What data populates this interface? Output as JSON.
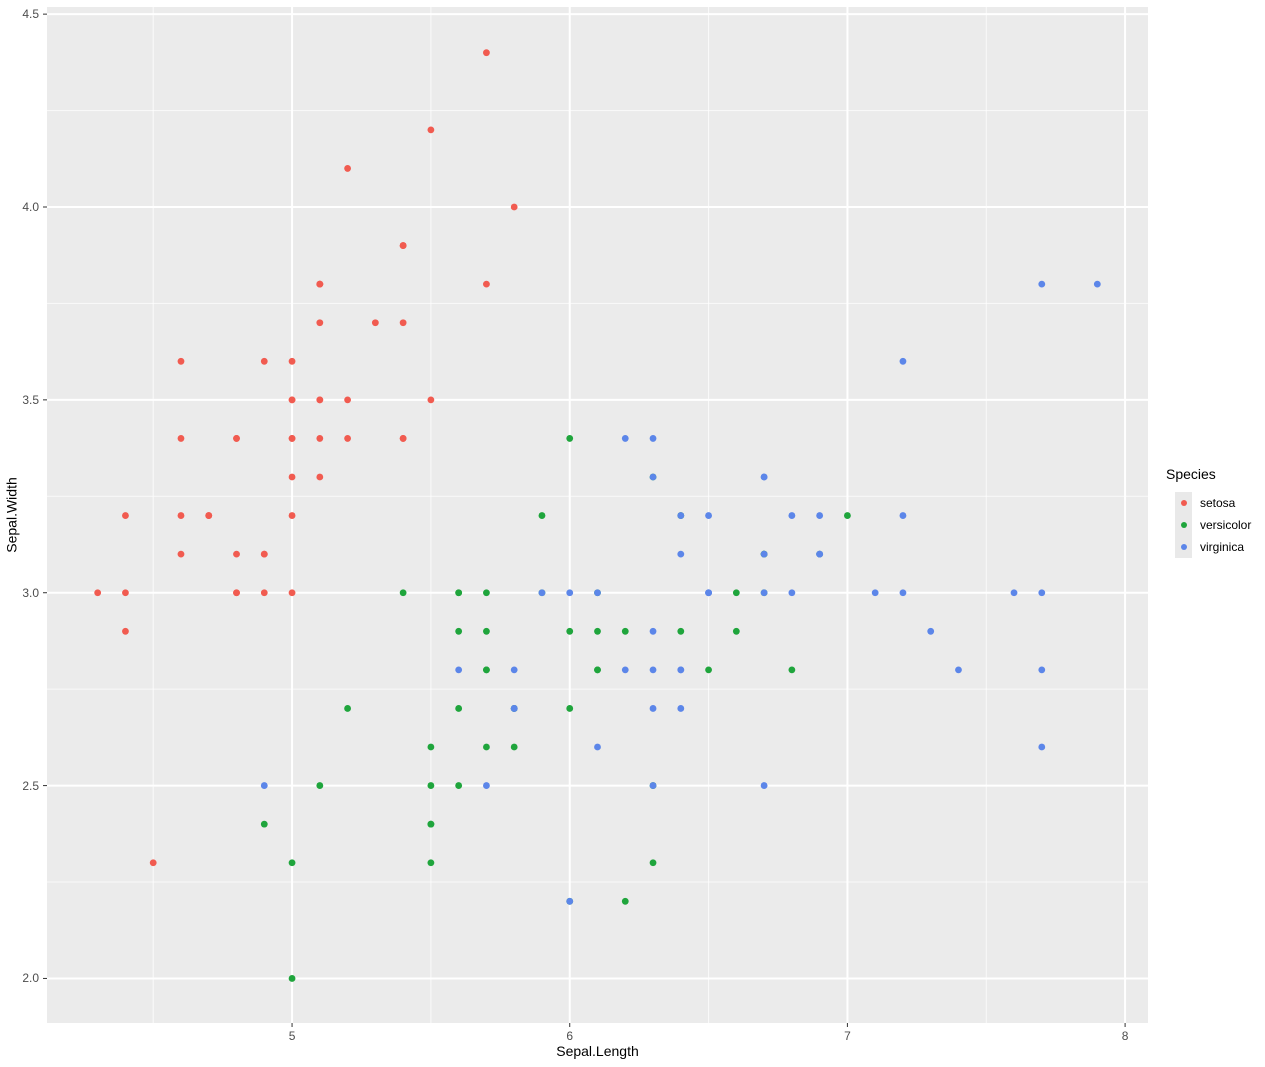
{
  "figure": {
    "background": "#ffffff",
    "panel_background": "#ebebeb",
    "grid_color": "#ffffff",
    "tick_mark_color": "#333333",
    "tick_label_color": "#4d4d4d"
  },
  "legend": {
    "title": "Species",
    "items": [
      {
        "label": "setosa"
      },
      {
        "label": "versicolor"
      },
      {
        "label": "virginica"
      }
    ]
  },
  "chart_data": {
    "type": "scatter",
    "title": "",
    "xlabel": "Sepal.Length",
    "ylabel": "Sepal.Width",
    "xlim": [
      4.1175,
      8.0825
    ],
    "ylim": [
      1.8845,
      4.5185
    ],
    "grid": true,
    "legend_position": "right",
    "x_major_ticks": [
      5,
      6,
      7,
      8
    ],
    "x_tick_labels": [
      "5",
      "6",
      "7",
      "8"
    ],
    "x_minor_ticks": [
      4.5,
      5.5,
      6.5,
      7.5
    ],
    "y_major_ticks": [
      2.0,
      2.5,
      3.0,
      3.5,
      4.0,
      4.5
    ],
    "y_tick_labels": [
      "2.0",
      "2.5",
      "3.0",
      "3.5",
      "4.0",
      "4.5"
    ],
    "y_minor_ticks": [
      2.25,
      2.75,
      3.25,
      3.75,
      4.25
    ],
    "series": [
      {
        "name": "setosa",
        "color": "#f15b50",
        "points": [
          [
            5.1,
            3.5
          ],
          [
            4.9,
            3.0
          ],
          [
            4.7,
            3.2
          ],
          [
            4.6,
            3.1
          ],
          [
            5.0,
            3.6
          ],
          [
            5.4,
            3.9
          ],
          [
            4.6,
            3.4
          ],
          [
            5.0,
            3.4
          ],
          [
            4.4,
            2.9
          ],
          [
            4.9,
            3.1
          ],
          [
            5.4,
            3.7
          ],
          [
            4.8,
            3.4
          ],
          [
            4.8,
            3.0
          ],
          [
            4.3,
            3.0
          ],
          [
            5.8,
            4.0
          ],
          [
            5.7,
            4.4
          ],
          [
            5.4,
            3.9
          ],
          [
            5.1,
            3.5
          ],
          [
            5.7,
            3.8
          ],
          [
            5.1,
            3.8
          ],
          [
            5.4,
            3.4
          ],
          [
            5.1,
            3.7
          ],
          [
            4.6,
            3.6
          ],
          [
            5.1,
            3.3
          ],
          [
            4.8,
            3.4
          ],
          [
            5.0,
            3.0
          ],
          [
            5.0,
            3.4
          ],
          [
            5.2,
            3.5
          ],
          [
            5.2,
            3.4
          ],
          [
            4.7,
            3.2
          ],
          [
            4.8,
            3.1
          ],
          [
            5.4,
            3.4
          ],
          [
            5.2,
            4.1
          ],
          [
            5.5,
            4.2
          ],
          [
            4.9,
            3.1
          ],
          [
            5.0,
            3.2
          ],
          [
            5.5,
            3.5
          ],
          [
            4.9,
            3.6
          ],
          [
            4.4,
            3.0
          ],
          [
            5.1,
            3.4
          ],
          [
            5.0,
            3.5
          ],
          [
            4.5,
            2.3
          ],
          [
            4.4,
            3.2
          ],
          [
            5.0,
            3.5
          ],
          [
            5.1,
            3.8
          ],
          [
            4.8,
            3.0
          ],
          [
            5.1,
            3.8
          ],
          [
            4.6,
            3.2
          ],
          [
            5.3,
            3.7
          ],
          [
            5.0,
            3.3
          ]
        ]
      },
      {
        "name": "versicolor",
        "color": "#1fa53c",
        "points": [
          [
            7.0,
            3.2
          ],
          [
            6.4,
            3.2
          ],
          [
            6.9,
            3.1
          ],
          [
            5.5,
            2.3
          ],
          [
            6.5,
            2.8
          ],
          [
            5.7,
            2.8
          ],
          [
            6.3,
            3.3
          ],
          [
            4.9,
            2.4
          ],
          [
            6.6,
            2.9
          ],
          [
            5.2,
            2.7
          ],
          [
            5.0,
            2.0
          ],
          [
            5.9,
            3.0
          ],
          [
            6.0,
            2.2
          ],
          [
            6.1,
            2.9
          ],
          [
            5.6,
            2.9
          ],
          [
            6.7,
            3.1
          ],
          [
            5.6,
            3.0
          ],
          [
            5.8,
            2.7
          ],
          [
            6.2,
            2.2
          ],
          [
            5.6,
            2.5
          ],
          [
            5.9,
            3.2
          ],
          [
            6.1,
            2.8
          ],
          [
            6.3,
            2.5
          ],
          [
            6.1,
            2.8
          ],
          [
            6.4,
            2.9
          ],
          [
            6.6,
            3.0
          ],
          [
            6.8,
            2.8
          ],
          [
            6.7,
            3.0
          ],
          [
            6.0,
            2.9
          ],
          [
            5.7,
            2.6
          ],
          [
            5.5,
            2.4
          ],
          [
            5.5,
            2.4
          ],
          [
            5.8,
            2.7
          ],
          [
            6.0,
            2.7
          ],
          [
            5.4,
            3.0
          ],
          [
            6.0,
            3.4
          ],
          [
            6.7,
            3.1
          ],
          [
            6.3,
            2.3
          ],
          [
            5.6,
            3.0
          ],
          [
            5.5,
            2.5
          ],
          [
            5.5,
            2.6
          ],
          [
            6.1,
            3.0
          ],
          [
            5.8,
            2.6
          ],
          [
            5.0,
            2.3
          ],
          [
            5.6,
            2.7
          ],
          [
            5.7,
            3.0
          ],
          [
            5.7,
            2.9
          ],
          [
            6.2,
            2.9
          ],
          [
            5.1,
            2.5
          ],
          [
            5.7,
            2.8
          ]
        ]
      },
      {
        "name": "virginica",
        "color": "#5c86e9",
        "points": [
          [
            6.3,
            3.3
          ],
          [
            5.8,
            2.7
          ],
          [
            7.1,
            3.0
          ],
          [
            6.3,
            2.9
          ],
          [
            6.5,
            3.0
          ],
          [
            7.6,
            3.0
          ],
          [
            4.9,
            2.5
          ],
          [
            7.3,
            2.9
          ],
          [
            6.7,
            2.5
          ],
          [
            7.2,
            3.6
          ],
          [
            6.5,
            3.2
          ],
          [
            6.4,
            2.7
          ],
          [
            6.8,
            3.0
          ],
          [
            5.7,
            2.5
          ],
          [
            5.8,
            2.8
          ],
          [
            6.4,
            3.2
          ],
          [
            6.5,
            3.0
          ],
          [
            7.7,
            3.8
          ],
          [
            7.7,
            2.6
          ],
          [
            6.0,
            2.2
          ],
          [
            6.9,
            3.2
          ],
          [
            5.6,
            2.8
          ],
          [
            7.7,
            2.8
          ],
          [
            6.3,
            2.7
          ],
          [
            6.7,
            3.3
          ],
          [
            7.2,
            3.2
          ],
          [
            6.2,
            2.8
          ],
          [
            6.1,
            3.0
          ],
          [
            6.4,
            2.8
          ],
          [
            7.2,
            3.0
          ],
          [
            7.4,
            2.8
          ],
          [
            7.9,
            3.8
          ],
          [
            6.4,
            2.8
          ],
          [
            6.3,
            2.8
          ],
          [
            6.1,
            2.6
          ],
          [
            7.7,
            3.0
          ],
          [
            6.3,
            3.4
          ],
          [
            6.4,
            3.1
          ],
          [
            6.0,
            3.0
          ],
          [
            6.9,
            3.1
          ],
          [
            6.7,
            3.1
          ],
          [
            6.9,
            3.1
          ],
          [
            5.8,
            2.7
          ],
          [
            6.8,
            3.2
          ],
          [
            6.7,
            3.3
          ],
          [
            6.7,
            3.0
          ],
          [
            6.3,
            2.5
          ],
          [
            6.5,
            3.0
          ],
          [
            6.2,
            3.4
          ],
          [
            5.9,
            3.0
          ]
        ]
      }
    ]
  }
}
